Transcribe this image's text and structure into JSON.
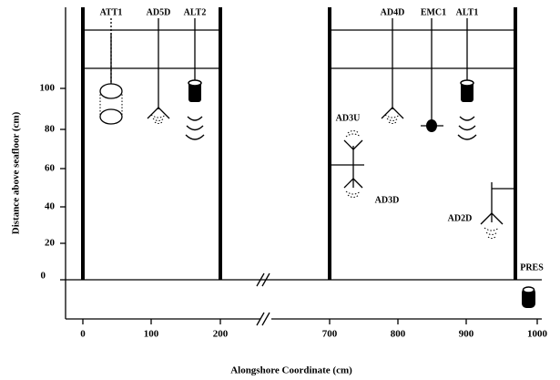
{
  "axes": {
    "y_label": "Distance above seafloor (cm)",
    "x_label": "Alongshore Coordinate (cm)",
    "y_ticks": [
      "100",
      "80",
      "60",
      "40",
      "20",
      "0"
    ],
    "x_ticks": [
      "0",
      "100",
      "200",
      "700",
      "800",
      "900",
      "1000"
    ]
  },
  "instruments": [
    "ATT1",
    "AD5D",
    "ALT2",
    "AD4D",
    "EMC1",
    "ALT1",
    "AD3U",
    "AD3D",
    "AD2D",
    "PRES"
  ]
}
